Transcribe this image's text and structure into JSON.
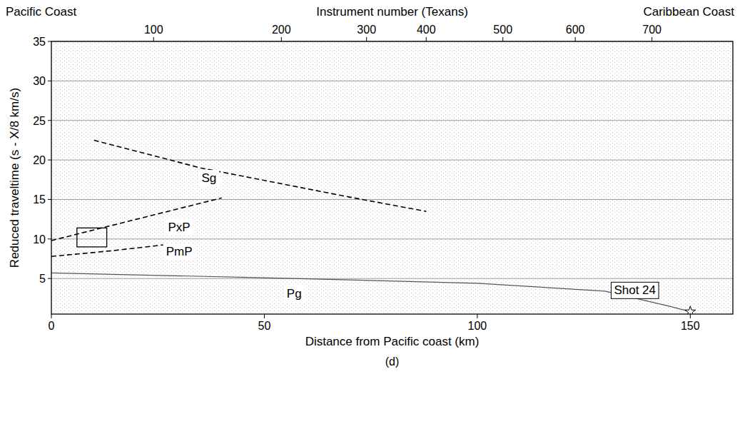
{
  "chart_data": {
    "type": "line",
    "caption": "(d)",
    "top_left": "Pacific Coast",
    "top_right": "Caribbean Coast",
    "x2label": "Instrument number (Texans)",
    "xlabel": "Distance from Pacific coast (km)",
    "ylabel": "Reduced traveltime (s - X/8 km/s)",
    "xlim": [
      0,
      160
    ],
    "xticks": [
      0,
      50,
      100,
      150
    ],
    "x2ticks": [
      {
        "value": 24,
        "label": "100"
      },
      {
        "value": 54,
        "label": "200"
      },
      {
        "value": 74,
        "label": "300"
      },
      {
        "value": 88,
        "label": "400"
      },
      {
        "value": 106,
        "label": "500"
      },
      {
        "value": 123,
        "label": "600"
      },
      {
        "value": 141,
        "label": "700"
      }
    ],
    "ylim": [
      0.5,
      35
    ],
    "yticks": [
      5,
      10,
      15,
      20,
      25,
      30,
      35
    ],
    "grid": true,
    "series": [
      {
        "name": "Sg",
        "color": "#000000",
        "line_style": "dashed",
        "x": [
          10,
          35,
          70,
          88
        ],
        "values": [
          22.5,
          19.0,
          15.3,
          13.5
        ]
      },
      {
        "name": "PxP",
        "color": "#000000",
        "line_style": "dashed",
        "x": [
          0,
          20,
          40
        ],
        "values": [
          9.8,
          12.5,
          15.2
        ]
      },
      {
        "name": "PmP",
        "color": "#000000",
        "line_style": "dashed",
        "x": [
          0,
          14,
          27
        ],
        "values": [
          7.8,
          8.5,
          9.3
        ]
      },
      {
        "name": "Pg",
        "color": "#555555",
        "line_style": "solid",
        "x": [
          0,
          50,
          100,
          130,
          145,
          150
        ],
        "values": [
          5.7,
          5.1,
          4.4,
          3.4,
          1.5,
          0.8
        ]
      }
    ],
    "annotations": [
      {
        "text": "Sg",
        "x": 37,
        "y": 17.2
      },
      {
        "text": "PxP",
        "x": 30,
        "y": 11.0
      },
      {
        "text": "PmP",
        "x": 30,
        "y": 7.9
      },
      {
        "text": "Pg",
        "x": 57,
        "y": 2.6
      },
      {
        "text": "Shot 24",
        "x": 137,
        "y": 3.0,
        "box": true
      }
    ],
    "shot": {
      "x": 150,
      "y": 0.8
    },
    "box": {
      "x": [
        6,
        13
      ],
      "y": [
        9.0,
        11.4
      ]
    }
  }
}
